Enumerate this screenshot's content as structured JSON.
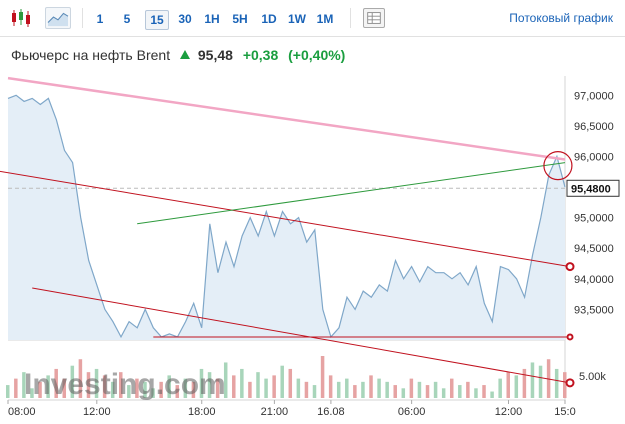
{
  "toolbar": {
    "timeframes": [
      "1",
      "5",
      "15",
      "30",
      "1H",
      "5H",
      "1D",
      "1W",
      "1M"
    ],
    "active_timeframe": "15",
    "stream_link": "Потоковый график"
  },
  "instrument": {
    "name": "Фьючерс на нефть Brent",
    "price": "95,48",
    "change": "+0,38",
    "change_pct": "(+0,40%)"
  },
  "watermark": "Investing.com",
  "colors": {
    "area_line": "#7fa7c9",
    "area_fill": "#e4eef7",
    "channel_upper": "#f2a6c4",
    "channel_red": "#c1121f",
    "green_line": "#2e9a3d",
    "price_marker": "#c1121f",
    "volume_up": "#a8d5ba",
    "volume_down": "#e6a3a3"
  },
  "chart_data": {
    "type": "area",
    "price_axis_labels": [
      "97,0000",
      "96,5000",
      "96,0000",
      "95,5000",
      "95,0000",
      "94,5000",
      "94,0000",
      "93,5000"
    ],
    "current_price_label": "95,4800",
    "volume_axis_label": "5.00k",
    "x_tick_labels": [
      "08:00",
      "12:00",
      "18:00",
      "21:00",
      "16.08",
      "06:00",
      "12:00",
      "15:0"
    ],
    "ylim": [
      93.0,
      97.25
    ],
    "series": [
      {
        "values": [
          96.95,
          97.0,
          96.9,
          96.95,
          96.85,
          96.95,
          96.6,
          96.1,
          95.9,
          95.0,
          94.3,
          93.9,
          93.5,
          93.3,
          93.05,
          93.3,
          93.2,
          93.5,
          93.2,
          93.05,
          93.1,
          93.05,
          93.3,
          93.6,
          93.2,
          94.9,
          94.1,
          94.6,
          94.2,
          94.7,
          95.0,
          94.7,
          95.1,
          94.7,
          95.1,
          94.9,
          95.0,
          94.6,
          94.8,
          93.5,
          93.05,
          93.2,
          93.7,
          93.5,
          93.8,
          93.7,
          93.9,
          93.8,
          94.3,
          94.0,
          94.2,
          93.95,
          94.2,
          94.1,
          94.1,
          94.0,
          94.1,
          93.9,
          94.2,
          93.6,
          93.3,
          94.2,
          94.15,
          94.0,
          93.7,
          94.4,
          95.0,
          95.7,
          96.0,
          95.5
        ]
      }
    ],
    "volume": [
      0.4,
      0.6,
      0.8,
      0.3,
      0.5,
      0.7,
      0.9,
      0.6,
      1.0,
      1.2,
      0.8,
      0.9,
      0.7,
      0.5,
      0.8,
      0.4,
      0.6,
      0.5,
      0.3,
      0.5,
      0.7,
      0.4,
      0.6,
      0.5,
      0.9,
      0.8,
      0.6,
      1.1,
      0.7,
      0.9,
      0.5,
      0.8,
      0.6,
      0.7,
      1.0,
      0.9,
      0.6,
      0.5,
      0.4,
      1.3,
      0.7,
      0.5,
      0.6,
      0.4,
      0.5,
      0.7,
      0.6,
      0.5,
      0.4,
      0.3,
      0.6,
      0.5,
      0.4,
      0.5,
      0.3,
      0.6,
      0.4,
      0.5,
      0.3,
      0.4,
      0.2,
      0.6,
      0.8,
      0.7,
      0.9,
      1.1,
      1.0,
      1.2,
      0.9,
      0.8
    ],
    "volume_direction": [
      1,
      0,
      1,
      1,
      0,
      1,
      0,
      0,
      1,
      0,
      0,
      1,
      0,
      1,
      0,
      1,
      0,
      1,
      1,
      0,
      1,
      0,
      1,
      0,
      1,
      1,
      0,
      1,
      0,
      1,
      0,
      1,
      1,
      0,
      1,
      0,
      1,
      0,
      1,
      0,
      0,
      1,
      1,
      0,
      1,
      0,
      1,
      1,
      0,
      1,
      0,
      1,
      0,
      1,
      1,
      0,
      1,
      0,
      1,
      0,
      1,
      1,
      0,
      1,
      0,
      1,
      1,
      0,
      1,
      0
    ],
    "trendlines": [
      {
        "name": "upper-pink",
        "from": [
          0,
          97.28
        ],
        "to": [
          69,
          95.95
        ]
      },
      {
        "name": "red-middle",
        "from": [
          -3,
          95.8
        ],
        "to": [
          69,
          94.2
        ]
      },
      {
        "name": "green",
        "from": [
          16,
          94.9
        ],
        "to": [
          69,
          95.9
        ]
      },
      {
        "name": "red-lower",
        "from": [
          3,
          93.85
        ],
        "to": [
          69,
          92.3
        ]
      },
      {
        "name": "red-horizontal",
        "from": [
          18,
          93.05
        ],
        "to": [
          69,
          93.05
        ]
      }
    ]
  }
}
